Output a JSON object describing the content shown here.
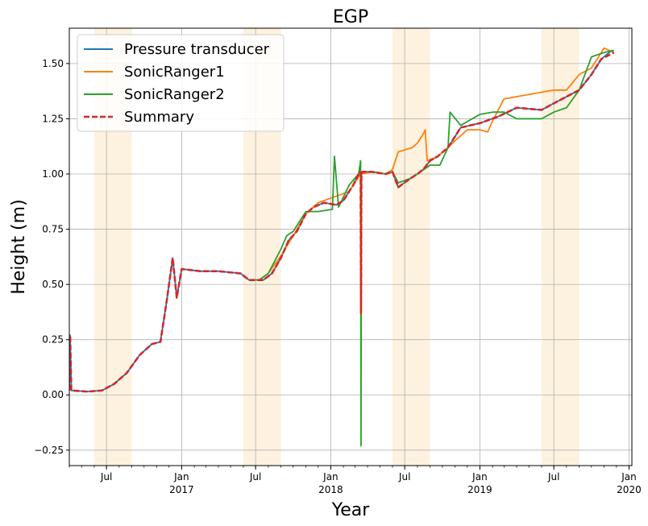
{
  "chart_data": {
    "type": "line",
    "title": "EGP",
    "xlabel": "Year",
    "ylabel": "Height (m)",
    "xlim": [
      "2016-04-01",
      "2020-01-08"
    ],
    "ylim": [
      -0.32,
      1.66
    ],
    "grid": true,
    "legend_position": "top-left",
    "y_ticks": [
      {
        "value": -0.25,
        "label": "−0.25"
      },
      {
        "value": 0.0,
        "label": "0.00"
      },
      {
        "value": 0.25,
        "label": "0.25"
      },
      {
        "value": 0.5,
        "label": "0.50"
      },
      {
        "value": 0.75,
        "label": "0.75"
      },
      {
        "value": 1.0,
        "label": "1.00"
      },
      {
        "value": 1.25,
        "label": "1.25"
      },
      {
        "value": 1.5,
        "label": "1.50"
      }
    ],
    "x_ticks": [
      {
        "date": "2016-07-01",
        "label": "Jul",
        "sublabel": ""
      },
      {
        "date": "2017-01-01",
        "label": "Jan",
        "sublabel": "2017"
      },
      {
        "date": "2017-07-01",
        "label": "Jul",
        "sublabel": ""
      },
      {
        "date": "2018-01-01",
        "label": "Jan",
        "sublabel": "2018"
      },
      {
        "date": "2018-07-01",
        "label": "Jul",
        "sublabel": ""
      },
      {
        "date": "2019-01-01",
        "label": "Jan",
        "sublabel": "2019"
      },
      {
        "date": "2019-07-01",
        "label": "Jul",
        "sublabel": ""
      },
      {
        "date": "2020-01-01",
        "label": "Jan",
        "sublabel": "2020"
      }
    ],
    "shaded_periods": [
      {
        "start": "2016-06-01",
        "end": "2016-09-01"
      },
      {
        "start": "2017-06-01",
        "end": "2017-09-01"
      },
      {
        "start": "2018-06-01",
        "end": "2018-09-01"
      },
      {
        "start": "2019-06-01",
        "end": "2019-09-01"
      }
    ],
    "shade_color": "#fdf2df",
    "series": [
      {
        "name": "Pressure transducer",
        "color": "#1f77b4",
        "dash": "solid",
        "x": [
          "2016-04-01",
          "2016-04-03",
          "2016-04-06",
          "2016-05-15",
          "2016-06-20",
          "2016-07-20",
          "2016-08-20",
          "2016-09-20",
          "2016-10-20",
          "2016-11-10",
          "2016-11-25",
          "2016-12-10",
          "2016-12-20",
          "2017-01-01",
          "2017-02-15",
          "2017-04-01",
          "2017-05-25",
          "2017-06-15",
          "2017-07-01",
          "2017-07-20",
          "2017-08-10",
          "2017-09-01",
          "2017-09-20",
          "2017-10-10",
          "2017-11-01",
          "2017-11-20",
          "2017-12-15",
          "2018-01-15",
          "2018-02-01",
          "2018-02-25",
          "2018-03-10",
          "2018-03-15",
          "2018-03-16",
          "2018-03-17",
          "2018-03-20",
          "2018-04-10",
          "2018-05-15",
          "2018-06-01",
          "2018-06-15",
          "2018-07-15",
          "2018-08-01",
          "2018-08-15",
          "2018-09-01",
          "2018-09-20",
          "2018-10-15",
          "2018-11-15",
          "2019-01-01",
          "2019-02-15",
          "2019-04-01",
          "2019-06-01",
          "2019-07-01",
          "2019-08-01",
          "2019-09-01",
          "2019-10-01",
          "2019-10-25",
          "2019-11-20"
        ],
        "values": [
          0.02,
          0.27,
          0.02,
          0.015,
          0.02,
          0.05,
          0.1,
          0.18,
          0.23,
          0.24,
          0.42,
          0.62,
          0.44,
          0.57,
          0.56,
          0.56,
          0.55,
          0.52,
          0.52,
          0.52,
          0.55,
          0.62,
          0.7,
          0.74,
          0.82,
          0.85,
          0.87,
          0.86,
          0.88,
          0.95,
          1.0,
          1.01,
          0.37,
          1.0,
          1.01,
          1.01,
          1.0,
          1.01,
          0.94,
          0.98,
          1.0,
          1.02,
          1.06,
          1.08,
          1.12,
          1.21,
          1.23,
          1.26,
          1.3,
          1.29,
          1.32,
          1.35,
          1.38,
          1.45,
          1.52,
          1.56
        ]
      },
      {
        "name": "SonicRanger1",
        "color": "#ff7f0e",
        "dash": "solid",
        "x": [
          "2017-06-15",
          "2017-07-10",
          "2017-08-01",
          "2017-09-01",
          "2017-10-01",
          "2017-11-01",
          "2017-12-01",
          "2018-01-15",
          "2018-02-15",
          "2018-03-15",
          "2018-04-15",
          "2018-05-15",
          "2018-06-01",
          "2018-06-15",
          "2018-07-20",
          "2018-08-01",
          "2018-08-15",
          "2018-08-20",
          "2018-08-25",
          "2018-09-20",
          "2018-10-15",
          "2018-11-01",
          "2018-12-01",
          "2019-01-01",
          "2019-01-20",
          "2019-02-01",
          "2019-03-01",
          "2019-04-01",
          "2019-05-01",
          "2019-06-01",
          "2019-07-01",
          "2019-08-01",
          "2019-09-01",
          "2019-10-01",
          "2019-11-01",
          "2019-11-25"
        ],
        "values": [
          0.52,
          0.52,
          0.55,
          0.63,
          0.72,
          0.82,
          0.87,
          0.9,
          0.92,
          1.0,
          1.01,
          1.0,
          1.02,
          1.1,
          1.12,
          1.14,
          1.18,
          1.2,
          1.06,
          1.08,
          1.12,
          1.15,
          1.2,
          1.2,
          1.19,
          1.24,
          1.34,
          1.35,
          1.36,
          1.37,
          1.38,
          1.38,
          1.45,
          1.48,
          1.57,
          1.55
        ]
      },
      {
        "name": "SonicRanger2",
        "color": "#2ca02c",
        "dash": "solid",
        "x": [
          "2017-06-15",
          "2017-07-10",
          "2017-08-01",
          "2017-09-01",
          "2017-09-15",
          "2017-10-01",
          "2017-11-01",
          "2017-12-01",
          "2018-01-05",
          "2018-01-10",
          "2018-01-20",
          "2018-02-15",
          "2018-03-10",
          "2018-03-15",
          "2018-03-16",
          "2018-03-17",
          "2018-03-20",
          "2018-04-15",
          "2018-05-15",
          "2018-06-01",
          "2018-06-15",
          "2018-07-15",
          "2018-08-01",
          "2018-09-01",
          "2018-09-25",
          "2018-10-15",
          "2018-10-20",
          "2018-11-15",
          "2019-01-01",
          "2019-02-01",
          "2019-03-01",
          "2019-04-01",
          "2019-05-01",
          "2019-06-01",
          "2019-07-01",
          "2019-08-01",
          "2019-09-01",
          "2019-10-01",
          "2019-11-01",
          "2019-11-25"
        ],
        "values": [
          0.52,
          0.52,
          0.55,
          0.66,
          0.72,
          0.74,
          0.83,
          0.83,
          0.84,
          1.08,
          0.85,
          0.95,
          1.0,
          1.06,
          -0.23,
          1.0,
          1.01,
          1.01,
          1.0,
          1.01,
          0.96,
          0.98,
          1.0,
          1.04,
          1.04,
          1.12,
          1.28,
          1.22,
          1.27,
          1.28,
          1.28,
          1.25,
          1.25,
          1.25,
          1.28,
          1.3,
          1.38,
          1.53,
          1.55,
          1.56
        ]
      },
      {
        "name": "Summary",
        "color": "#d62728",
        "dash": "dashed",
        "x": [
          "2016-04-01",
          "2016-04-03",
          "2016-04-06",
          "2016-05-15",
          "2016-06-20",
          "2016-07-20",
          "2016-08-20",
          "2016-09-20",
          "2016-10-20",
          "2016-11-10",
          "2016-11-25",
          "2016-12-10",
          "2016-12-20",
          "2017-01-01",
          "2017-02-15",
          "2017-04-01",
          "2017-05-25",
          "2017-06-15",
          "2017-07-01",
          "2017-07-20",
          "2017-08-10",
          "2017-09-01",
          "2017-09-20",
          "2017-10-10",
          "2017-11-01",
          "2017-11-20",
          "2017-12-15",
          "2018-01-15",
          "2018-02-01",
          "2018-02-25",
          "2018-03-10",
          "2018-03-15",
          "2018-03-16",
          "2018-03-17",
          "2018-03-20",
          "2018-04-10",
          "2018-05-15",
          "2018-06-01",
          "2018-06-15",
          "2018-07-15",
          "2018-08-01",
          "2018-08-15",
          "2018-09-01",
          "2018-09-20",
          "2018-10-15",
          "2018-11-15",
          "2019-01-01",
          "2019-02-15",
          "2019-04-01",
          "2019-06-01",
          "2019-07-01",
          "2019-08-01",
          "2019-09-01",
          "2019-10-01",
          "2019-10-25",
          "2019-11-25"
        ],
        "values": [
          0.02,
          0.27,
          0.02,
          0.015,
          0.02,
          0.05,
          0.1,
          0.18,
          0.23,
          0.24,
          0.42,
          0.62,
          0.44,
          0.57,
          0.56,
          0.56,
          0.55,
          0.52,
          0.52,
          0.52,
          0.55,
          0.62,
          0.7,
          0.74,
          0.82,
          0.85,
          0.87,
          0.86,
          0.88,
          0.95,
          1.0,
          1.01,
          0.37,
          1.0,
          1.01,
          1.01,
          1.0,
          1.01,
          0.94,
          0.98,
          1.0,
          1.02,
          1.06,
          1.08,
          1.12,
          1.21,
          1.23,
          1.26,
          1.3,
          1.29,
          1.32,
          1.35,
          1.38,
          1.45,
          1.52,
          1.55
        ]
      }
    ]
  }
}
